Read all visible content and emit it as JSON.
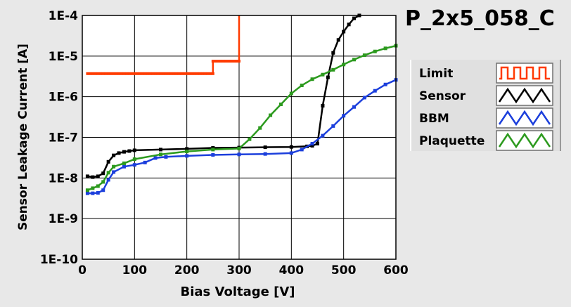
{
  "chart_data": {
    "type": "line",
    "title": "P_2x5_058_C",
    "xlabel": "Bias Voltage [V]",
    "ylabel": "Sensor Leakage Current [A]",
    "xlim": [
      0,
      600
    ],
    "ylim": [
      1e-10,
      0.0001
    ],
    "y_scale": "log",
    "grid": true,
    "x_ticks": [
      0,
      100,
      200,
      300,
      400,
      500,
      600
    ],
    "y_ticks": [
      "1E-10",
      "1E-9",
      "1E-8",
      "1E-7",
      "1E-6",
      "1E-5",
      "1E-4"
    ],
    "legend_position": "right",
    "series": [
      {
        "name": "Limit",
        "color": "#ff3a00",
        "step": true,
        "x": [
          10,
          250,
          250,
          300,
          300
        ],
        "y": [
          3.7e-06,
          3.7e-06,
          7.5e-06,
          7.5e-06,
          0.0001
        ]
      },
      {
        "name": "Sensor",
        "color": "#000000",
        "x": [
          10,
          20,
          30,
          40,
          50,
          60,
          70,
          80,
          90,
          100,
          150,
          200,
          250,
          300,
          350,
          400,
          430,
          440,
          450,
          460,
          470,
          480,
          490,
          500,
          510,
          520,
          530
        ],
        "y": [
          1.1e-08,
          1.05e-08,
          1.1e-08,
          1.3e-08,
          2.5e-08,
          3.6e-08,
          4.1e-08,
          4.4e-08,
          4.6e-08,
          4.8e-08,
          5e-08,
          5.2e-08,
          5.5e-08,
          5.6e-08,
          5.7e-08,
          5.8e-08,
          6e-08,
          6.2e-08,
          7e-08,
          6e-07,
          3e-06,
          1.2e-05,
          2.5e-05,
          4e-05,
          6e-05,
          8.5e-05,
          0.0001
        ]
      },
      {
        "name": "BBM",
        "color": "#1c3fdc",
        "x": [
          10,
          20,
          30,
          40,
          50,
          60,
          80,
          100,
          120,
          140,
          160,
          200,
          250,
          300,
          350,
          400,
          420,
          440,
          460,
          480,
          500,
          520,
          540,
          560,
          580,
          600
        ],
        "y": [
          4.2e-09,
          4.2e-09,
          4.3e-09,
          5e-09,
          9e-09,
          1.4e-08,
          1.9e-08,
          2.1e-08,
          2.4e-08,
          3.1e-08,
          3.3e-08,
          3.5e-08,
          3.7e-08,
          3.8e-08,
          3.9e-08,
          4.1e-08,
          5e-08,
          7e-08,
          1.1e-07,
          1.9e-07,
          3.4e-07,
          5.6e-07,
          9.5e-07,
          1.4e-06,
          2e-06,
          2.6e-06
        ]
      },
      {
        "name": "Plaquette",
        "color": "#2c9a1e",
        "x": [
          10,
          20,
          30,
          40,
          50,
          60,
          80,
          100,
          150,
          200,
          250,
          300,
          320,
          340,
          360,
          380,
          400,
          420,
          440,
          460,
          480,
          500,
          520,
          540,
          560,
          580,
          600
        ],
        "y": [
          5e-09,
          5.6e-09,
          6.3e-09,
          8e-09,
          1.35e-08,
          1.9e-08,
          2.3e-08,
          2.9e-08,
          3.8e-08,
          4.5e-08,
          5e-08,
          5.3e-08,
          9e-08,
          1.7e-07,
          3.5e-07,
          6.5e-07,
          1.2e-06,
          1.9e-06,
          2.7e-06,
          3.5e-06,
          4.6e-06,
          6.2e-06,
          8.2e-06,
          1.05e-05,
          1.3e-05,
          1.55e-05,
          1.8e-05
        ]
      }
    ]
  }
}
